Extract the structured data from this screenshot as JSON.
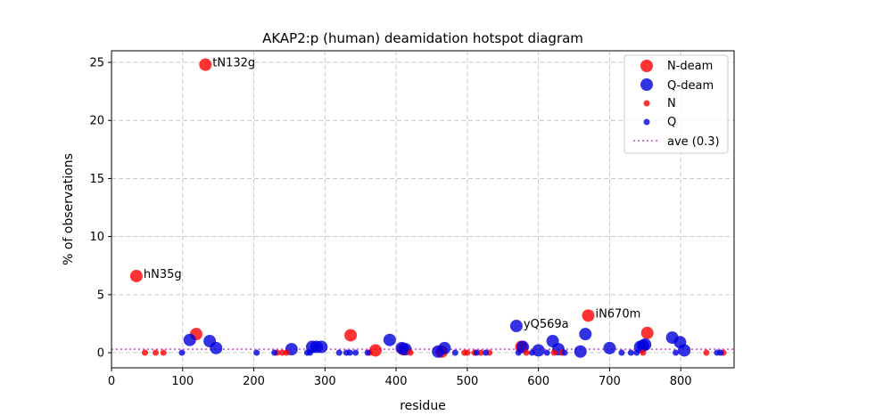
{
  "chart_data": {
    "type": "scatter",
    "title": "AKAP2:p (human) deamidation hotspot diagram",
    "xlabel": "residue",
    "ylabel": "% of observations",
    "xlim": [
      0,
      875
    ],
    "ylim": [
      -1.3,
      26
    ],
    "xticks": [
      0,
      100,
      200,
      300,
      400,
      500,
      600,
      700,
      800
    ],
    "yticks": [
      0,
      5,
      10,
      15,
      20,
      25
    ],
    "grid": true,
    "legend_position": "top-right",
    "colors": {
      "N": "#ff0000",
      "Q": "#0000dd",
      "average": "#cc44cc"
    },
    "average": {
      "label": "ave (0.3)",
      "value": 0.3
    },
    "legend": [
      "N-deam",
      "Q-deam",
      "N",
      "Q",
      "ave (0.3)"
    ],
    "series": [
      {
        "name": "N-deam",
        "points": [
          [
            35,
            6.6
          ],
          [
            119,
            1.6
          ],
          [
            132,
            24.8
          ],
          [
            336,
            1.5
          ],
          [
            371,
            0.2
          ],
          [
            410,
            0.3
          ],
          [
            464,
            0.1
          ],
          [
            576,
            0.5
          ],
          [
            670,
            3.2
          ],
          [
            753,
            1.7
          ]
        ]
      },
      {
        "name": "Q-deam",
        "points": [
          [
            110,
            1.1
          ],
          [
            138,
            1.0
          ],
          [
            147,
            0.4
          ],
          [
            253,
            0.3
          ],
          [
            282,
            0.5
          ],
          [
            288,
            0.5
          ],
          [
            295,
            0.5
          ],
          [
            391,
            1.1
          ],
          [
            408,
            0.4
          ],
          [
            413,
            0.3
          ],
          [
            459,
            0.1
          ],
          [
            468,
            0.4
          ],
          [
            569,
            2.3
          ],
          [
            578,
            0.5
          ],
          [
            600,
            0.2
          ],
          [
            620,
            1.0
          ],
          [
            628,
            0.3
          ],
          [
            659,
            0.1
          ],
          [
            666,
            1.6
          ],
          [
            700,
            0.4
          ],
          [
            743,
            0.5
          ],
          [
            747,
            0.6
          ],
          [
            750,
            0.7
          ],
          [
            788,
            1.3
          ],
          [
            799,
            0.9
          ],
          [
            805,
            0.2
          ]
        ]
      },
      {
        "name": "N",
        "points": [
          [
            47,
            0
          ],
          [
            62,
            0
          ],
          [
            73,
            0
          ],
          [
            233,
            0
          ],
          [
            240,
            0
          ],
          [
            246,
            0
          ],
          [
            363,
            0
          ],
          [
            420,
            0
          ],
          [
            496,
            0
          ],
          [
            500,
            0
          ],
          [
            510,
            0
          ],
          [
            519,
            0
          ],
          [
            531,
            0
          ],
          [
            583,
            0
          ],
          [
            622,
            0
          ],
          [
            633,
            0
          ],
          [
            747,
            0
          ],
          [
            836,
            0
          ],
          [
            860,
            0
          ]
        ]
      },
      {
        "name": "Q",
        "points": [
          [
            99,
            0
          ],
          [
            204,
            0
          ],
          [
            229,
            0
          ],
          [
            275,
            0
          ],
          [
            279,
            0
          ],
          [
            320,
            0
          ],
          [
            330,
            0
          ],
          [
            335,
            0
          ],
          [
            343,
            0
          ],
          [
            360,
            0
          ],
          [
            483,
            0
          ],
          [
            513,
            0
          ],
          [
            526,
            0
          ],
          [
            572,
            0
          ],
          [
            591,
            0
          ],
          [
            612,
            0
          ],
          [
            637,
            0
          ],
          [
            717,
            0
          ],
          [
            730,
            0
          ],
          [
            738,
            0
          ],
          [
            793,
            0
          ],
          [
            851,
            0
          ],
          [
            856,
            0
          ]
        ]
      }
    ],
    "annotations": [
      {
        "text": "hN35g",
        "x": 35,
        "y": 6.6
      },
      {
        "text": "tN132g",
        "x": 132,
        "y": 24.8
      },
      {
        "text": "yQ569a",
        "x": 569,
        "y": 2.3
      },
      {
        "text": "iN670m",
        "x": 670,
        "y": 3.2
      }
    ]
  }
}
